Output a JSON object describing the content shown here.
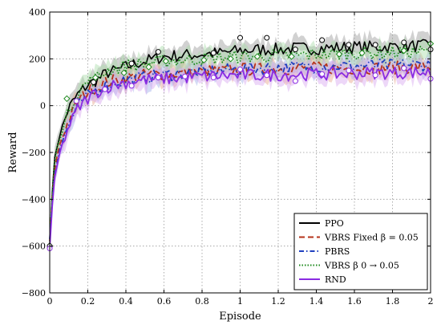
{
  "chart_data": {
    "type": "line",
    "title": "",
    "xlabel": "Episode",
    "ylabel": "Reward",
    "xlim": [
      0,
      2
    ],
    "ylim": [
      -800,
      400
    ],
    "xticks": [
      0,
      0.2,
      0.4,
      0.6,
      0.8,
      1,
      1.2,
      1.4,
      1.6,
      1.8,
      2
    ],
    "xtick_labels": [
      "0",
      "0.2",
      "0.4",
      "0.6",
      "0.8",
      "1",
      "1.2",
      "1.4",
      "1.6",
      "1.8",
      "2"
    ],
    "yticks": [
      -800,
      -600,
      -400,
      -200,
      0,
      200,
      400
    ],
    "ytick_labels": [
      "−800",
      "−600",
      "−400",
      "−200",
      "0",
      "200",
      "400"
    ],
    "grid": true,
    "legend_position": "bottom-right",
    "series": [
      {
        "name": "PPO",
        "color": "#000000",
        "dash": "solid",
        "marker": "circle",
        "band_color": "#999999",
        "points": [
          [
            0,
            -600
          ],
          [
            0.02,
            -250
          ],
          [
            0.05,
            -130
          ],
          [
            0.1,
            -10
          ],
          [
            0.15,
            50
          ],
          [
            0.2,
            90
          ],
          [
            0.25,
            110
          ],
          [
            0.3,
            140
          ],
          [
            0.35,
            150
          ],
          [
            0.4,
            165
          ],
          [
            0.45,
            180
          ],
          [
            0.5,
            190
          ],
          [
            0.55,
            200
          ],
          [
            0.6,
            210
          ],
          [
            0.7,
            215
          ],
          [
            0.8,
            220
          ],
          [
            0.9,
            225
          ],
          [
            1.0,
            235
          ],
          [
            1.1,
            240
          ],
          [
            1.2,
            240
          ],
          [
            1.3,
            245
          ],
          [
            1.4,
            245
          ],
          [
            1.5,
            248
          ],
          [
            1.6,
            250
          ],
          [
            1.7,
            250
          ],
          [
            1.8,
            252
          ],
          [
            1.9,
            255
          ],
          [
            2.0,
            255
          ]
        ],
        "markers": [
          [
            0,
            -600
          ],
          [
            0.23,
            100
          ],
          [
            0.43,
            180
          ],
          [
            0.57,
            230
          ],
          [
            0.86,
            225
          ],
          [
            1.0,
            290
          ],
          [
            1.14,
            290
          ],
          [
            1.29,
            240
          ],
          [
            1.43,
            280
          ],
          [
            1.57,
            260
          ],
          [
            1.71,
            260
          ],
          [
            1.86,
            270
          ],
          [
            2.0,
            240
          ]
        ]
      },
      {
        "name": "VBRS Fixed β = 0.05",
        "color": "#b5321a",
        "dash": "longdash",
        "marker": "none",
        "band_color": "#e6a58a",
        "points": [
          [
            0,
            -580
          ],
          [
            0.02,
            -300
          ],
          [
            0.05,
            -170
          ],
          [
            0.1,
            -60
          ],
          [
            0.15,
            20
          ],
          [
            0.2,
            60
          ],
          [
            0.25,
            80
          ],
          [
            0.3,
            100
          ],
          [
            0.35,
            110
          ],
          [
            0.4,
            120
          ],
          [
            0.45,
            125
          ],
          [
            0.5,
            130
          ],
          [
            0.6,
            135
          ],
          [
            0.7,
            140
          ],
          [
            0.8,
            145
          ],
          [
            0.9,
            150
          ],
          [
            1.0,
            155
          ],
          [
            1.1,
            155
          ],
          [
            1.2,
            158
          ],
          [
            1.3,
            160
          ],
          [
            1.4,
            160
          ],
          [
            1.5,
            162
          ],
          [
            1.6,
            160
          ],
          [
            1.7,
            160
          ],
          [
            1.8,
            162
          ],
          [
            1.9,
            165
          ],
          [
            2.0,
            165
          ]
        ],
        "markers": []
      },
      {
        "name": "PBRS",
        "color": "#1f3fbf",
        "dash": "dashdot",
        "marker": "none",
        "band_color": "#9fb0e8",
        "points": [
          [
            0,
            -570
          ],
          [
            0.02,
            -320
          ],
          [
            0.05,
            -190
          ],
          [
            0.1,
            -80
          ],
          [
            0.15,
            0
          ],
          [
            0.2,
            40
          ],
          [
            0.25,
            70
          ],
          [
            0.3,
            90
          ],
          [
            0.35,
            100
          ],
          [
            0.4,
            110
          ],
          [
            0.45,
            115
          ],
          [
            0.5,
            120
          ],
          [
            0.6,
            130
          ],
          [
            0.7,
            140
          ],
          [
            0.8,
            145
          ],
          [
            0.9,
            150
          ],
          [
            1.0,
            155
          ],
          [
            1.1,
            160
          ],
          [
            1.2,
            165
          ],
          [
            1.3,
            165
          ],
          [
            1.4,
            168
          ],
          [
            1.5,
            170
          ],
          [
            1.6,
            170
          ],
          [
            1.7,
            172
          ],
          [
            1.8,
            172
          ],
          [
            1.9,
            175
          ],
          [
            2.0,
            175
          ]
        ],
        "markers": []
      },
      {
        "name": "VBRS β 0 → 0.05",
        "color": "#1e8a1e",
        "dash": "dotted",
        "marker": "diamond",
        "band_color": "#a8dca8",
        "points": [
          [
            0,
            -590
          ],
          [
            0.02,
            -260
          ],
          [
            0.05,
            -140
          ],
          [
            0.1,
            -20
          ],
          [
            0.15,
            60
          ],
          [
            0.2,
            100
          ],
          [
            0.25,
            120
          ],
          [
            0.3,
            150
          ],
          [
            0.35,
            160
          ],
          [
            0.4,
            170
          ],
          [
            0.45,
            175
          ],
          [
            0.5,
            180
          ],
          [
            0.6,
            190
          ],
          [
            0.7,
            195
          ],
          [
            0.8,
            200
          ],
          [
            0.9,
            205
          ],
          [
            1.0,
            210
          ],
          [
            1.1,
            210
          ],
          [
            1.2,
            215
          ],
          [
            1.3,
            215
          ],
          [
            1.4,
            220
          ],
          [
            1.5,
            220
          ],
          [
            1.6,
            225
          ],
          [
            1.7,
            225
          ],
          [
            1.8,
            228
          ],
          [
            1.9,
            230
          ],
          [
            2.0,
            230
          ]
        ],
        "markers": [
          [
            0.09,
            30
          ],
          [
            0.24,
            120
          ],
          [
            0.39,
            140
          ],
          [
            0.52,
            165
          ],
          [
            0.61,
            190
          ],
          [
            0.81,
            195
          ],
          [
            0.95,
            200
          ],
          [
            1.09,
            210
          ],
          [
            1.27,
            210
          ],
          [
            1.52,
            220
          ],
          [
            1.64,
            225
          ],
          [
            1.86,
            235
          ],
          [
            2.0,
            265
          ]
        ]
      },
      {
        "name": "RND",
        "color": "#8a2be2",
        "dash": "solid",
        "marker": "circle",
        "band_color": "#d8a6f0",
        "points": [
          [
            0,
            -610
          ],
          [
            0.02,
            -340
          ],
          [
            0.05,
            -210
          ],
          [
            0.1,
            -90
          ],
          [
            0.15,
            -10
          ],
          [
            0.2,
            30
          ],
          [
            0.25,
            60
          ],
          [
            0.3,
            80
          ],
          [
            0.35,
            90
          ],
          [
            0.4,
            100
          ],
          [
            0.45,
            105
          ],
          [
            0.5,
            110
          ],
          [
            0.6,
            115
          ],
          [
            0.7,
            120
          ],
          [
            0.8,
            125
          ],
          [
            0.9,
            128
          ],
          [
            1.0,
            130
          ],
          [
            1.1,
            130
          ],
          [
            1.2,
            132
          ],
          [
            1.3,
            133
          ],
          [
            1.4,
            135
          ],
          [
            1.5,
            135
          ],
          [
            1.6,
            138
          ],
          [
            1.7,
            140
          ],
          [
            1.8,
            140
          ],
          [
            1.9,
            142
          ],
          [
            2.0,
            142
          ]
        ],
        "markers": [
          [
            0,
            -610
          ],
          [
            0.14,
            20
          ],
          [
            0.29,
            70
          ],
          [
            0.43,
            85
          ],
          [
            0.57,
            120
          ],
          [
            0.71,
            125
          ],
          [
            0.86,
            120
          ],
          [
            1.0,
            155
          ],
          [
            1.14,
            130
          ],
          [
            1.29,
            105
          ],
          [
            1.43,
            135
          ],
          [
            1.57,
            150
          ],
          [
            1.71,
            130
          ],
          [
            1.86,
            160
          ],
          [
            2.0,
            115
          ]
        ]
      }
    ]
  }
}
